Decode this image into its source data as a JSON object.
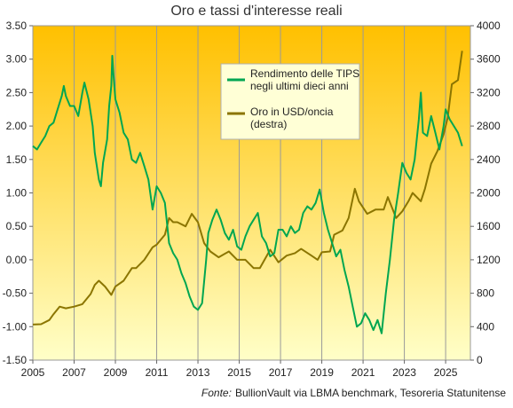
{
  "chart_data": {
    "type": "line",
    "title": "Oro e tassi d'interesse reali",
    "source_prefix": "Fonte:",
    "source_text": "BullionVault via LBMA benchmark, Tesoreria Statunitense",
    "x_ticks": [
      "2005",
      "2007",
      "2009",
      "2011",
      "2013",
      "2015",
      "2017",
      "2019",
      "2021",
      "2023",
      "2025"
    ],
    "x_range": [
      2005,
      2026.2
    ],
    "y_left": {
      "range": [
        -1.5,
        3.5
      ],
      "ticks": [
        "-1.50",
        "-1.00",
        "-0.50",
        "0.00",
        "0.50",
        "1.00",
        "1.50",
        "2.00",
        "2.50",
        "3.00",
        "3.50"
      ]
    },
    "y_right": {
      "range": [
        0,
        4000
      ],
      "ticks": [
        "0",
        "400",
        "800",
        "1200",
        "1600",
        "2000",
        "2400",
        "2800",
        "3200",
        "3600",
        "4000"
      ]
    },
    "background": {
      "top": "#FFC000",
      "bottom": "#FFFFC8"
    },
    "grid": "vertical",
    "legend_position": "top-center",
    "series": [
      {
        "name": "Rendimento delle TIPS negli ultimi dieci anni",
        "axis": "left",
        "color": "#00A651",
        "points": [
          [
            2005.0,
            1.7
          ],
          [
            2005.2,
            1.65
          ],
          [
            2005.4,
            1.75
          ],
          [
            2005.6,
            1.85
          ],
          [
            2005.8,
            2.0
          ],
          [
            2006.0,
            2.05
          ],
          [
            2006.2,
            2.25
          ],
          [
            2006.4,
            2.45
          ],
          [
            2006.5,
            2.6
          ],
          [
            2006.6,
            2.45
          ],
          [
            2006.8,
            2.3
          ],
          [
            2007.0,
            2.3
          ],
          [
            2007.2,
            2.15
          ],
          [
            2007.4,
            2.5
          ],
          [
            2007.5,
            2.65
          ],
          [
            2007.7,
            2.4
          ],
          [
            2007.9,
            2.0
          ],
          [
            2008.0,
            1.6
          ],
          [
            2008.1,
            1.4
          ],
          [
            2008.2,
            1.2
          ],
          [
            2008.3,
            1.1
          ],
          [
            2008.4,
            1.45
          ],
          [
            2008.6,
            1.8
          ],
          [
            2008.7,
            2.3
          ],
          [
            2008.8,
            2.6
          ],
          [
            2008.85,
            3.05
          ],
          [
            2008.9,
            2.8
          ],
          [
            2009.0,
            2.4
          ],
          [
            2009.2,
            2.2
          ],
          [
            2009.4,
            1.9
          ],
          [
            2009.6,
            1.8
          ],
          [
            2009.8,
            1.5
          ],
          [
            2010.0,
            1.45
          ],
          [
            2010.2,
            1.6
          ],
          [
            2010.4,
            1.4
          ],
          [
            2010.6,
            1.2
          ],
          [
            2010.8,
            0.75
          ],
          [
            2011.0,
            1.1
          ],
          [
            2011.2,
            1.0
          ],
          [
            2011.4,
            0.85
          ],
          [
            2011.6,
            0.25
          ],
          [
            2011.8,
            0.1
          ],
          [
            2012.0,
            0.0
          ],
          [
            2012.2,
            -0.2
          ],
          [
            2012.4,
            -0.35
          ],
          [
            2012.6,
            -0.55
          ],
          [
            2012.8,
            -0.7
          ],
          [
            2013.0,
            -0.75
          ],
          [
            2013.2,
            -0.65
          ],
          [
            2013.4,
            0.0
          ],
          [
            2013.5,
            0.4
          ],
          [
            2013.7,
            0.6
          ],
          [
            2013.9,
            0.75
          ],
          [
            2014.1,
            0.6
          ],
          [
            2014.3,
            0.4
          ],
          [
            2014.5,
            0.3
          ],
          [
            2014.7,
            0.45
          ],
          [
            2014.9,
            0.2
          ],
          [
            2015.1,
            0.15
          ],
          [
            2015.3,
            0.35
          ],
          [
            2015.5,
            0.5
          ],
          [
            2015.7,
            0.6
          ],
          [
            2015.9,
            0.7
          ],
          [
            2016.1,
            0.35
          ],
          [
            2016.3,
            0.25
          ],
          [
            2016.5,
            0.05
          ],
          [
            2016.7,
            0.1
          ],
          [
            2016.9,
            0.45
          ],
          [
            2017.1,
            0.45
          ],
          [
            2017.3,
            0.35
          ],
          [
            2017.5,
            0.5
          ],
          [
            2017.7,
            0.4
          ],
          [
            2017.9,
            0.45
          ],
          [
            2018.1,
            0.7
          ],
          [
            2018.3,
            0.8
          ],
          [
            2018.5,
            0.75
          ],
          [
            2018.7,
            0.85
          ],
          [
            2018.9,
            1.05
          ],
          [
            2019.1,
            0.7
          ],
          [
            2019.3,
            0.45
          ],
          [
            2019.5,
            0.25
          ],
          [
            2019.7,
            0.05
          ],
          [
            2019.9,
            0.15
          ],
          [
            2020.1,
            -0.15
          ],
          [
            2020.3,
            -0.4
          ],
          [
            2020.5,
            -0.7
          ],
          [
            2020.7,
            -1.0
          ],
          [
            2020.9,
            -0.95
          ],
          [
            2021.1,
            -0.8
          ],
          [
            2021.3,
            -0.9
          ],
          [
            2021.5,
            -1.05
          ],
          [
            2021.7,
            -0.9
          ],
          [
            2021.9,
            -1.1
          ],
          [
            2022.1,
            -0.5
          ],
          [
            2022.3,
            0.0
          ],
          [
            2022.5,
            0.6
          ],
          [
            2022.7,
            1.0
          ],
          [
            2022.9,
            1.45
          ],
          [
            2023.1,
            1.3
          ],
          [
            2023.3,
            1.2
          ],
          [
            2023.5,
            1.5
          ],
          [
            2023.7,
            2.1
          ],
          [
            2023.8,
            2.5
          ],
          [
            2023.9,
            1.9
          ],
          [
            2024.1,
            1.85
          ],
          [
            2024.3,
            2.15
          ],
          [
            2024.5,
            1.9
          ],
          [
            2024.7,
            1.65
          ],
          [
            2024.9,
            2.0
          ],
          [
            2025.0,
            2.25
          ],
          [
            2025.2,
            2.1
          ],
          [
            2025.4,
            2.0
          ],
          [
            2025.6,
            1.9
          ],
          [
            2025.8,
            1.7
          ]
        ]
      },
      {
        "name": "Oro in USD/oncia (destra)",
        "axis": "right",
        "color": "#8B7500",
        "points": [
          [
            2005.0,
            425
          ],
          [
            2005.4,
            430
          ],
          [
            2005.8,
            480
          ],
          [
            2006.0,
            550
          ],
          [
            2006.3,
            640
          ],
          [
            2006.6,
            620
          ],
          [
            2007.0,
            640
          ],
          [
            2007.4,
            670
          ],
          [
            2007.8,
            790
          ],
          [
            2008.0,
            900
          ],
          [
            2008.2,
            950
          ],
          [
            2008.5,
            880
          ],
          [
            2008.8,
            780
          ],
          [
            2009.0,
            880
          ],
          [
            2009.4,
            950
          ],
          [
            2009.8,
            1100
          ],
          [
            2010.0,
            1100
          ],
          [
            2010.4,
            1200
          ],
          [
            2010.8,
            1350
          ],
          [
            2011.0,
            1380
          ],
          [
            2011.4,
            1500
          ],
          [
            2011.6,
            1700
          ],
          [
            2011.8,
            1650
          ],
          [
            2012.0,
            1650
          ],
          [
            2012.4,
            1600
          ],
          [
            2012.7,
            1750
          ],
          [
            2013.0,
            1650
          ],
          [
            2013.3,
            1400
          ],
          [
            2013.6,
            1300
          ],
          [
            2014.0,
            1230
          ],
          [
            2014.5,
            1300
          ],
          [
            2014.9,
            1200
          ],
          [
            2015.3,
            1200
          ],
          [
            2015.7,
            1100
          ],
          [
            2016.0,
            1100
          ],
          [
            2016.5,
            1320
          ],
          [
            2016.9,
            1170
          ],
          [
            2017.3,
            1250
          ],
          [
            2017.7,
            1280
          ],
          [
            2018.0,
            1330
          ],
          [
            2018.5,
            1250
          ],
          [
            2018.8,
            1200
          ],
          [
            2019.0,
            1290
          ],
          [
            2019.4,
            1300
          ],
          [
            2019.6,
            1500
          ],
          [
            2020.0,
            1550
          ],
          [
            2020.3,
            1700
          ],
          [
            2020.6,
            2050
          ],
          [
            2020.8,
            1900
          ],
          [
            2021.2,
            1750
          ],
          [
            2021.6,
            1800
          ],
          [
            2022.0,
            1800
          ],
          [
            2022.2,
            1950
          ],
          [
            2022.6,
            1700
          ],
          [
            2022.9,
            1780
          ],
          [
            2023.2,
            1900
          ],
          [
            2023.4,
            2000
          ],
          [
            2023.8,
            1900
          ],
          [
            2024.0,
            2050
          ],
          [
            2024.3,
            2350
          ],
          [
            2024.6,
            2500
          ],
          [
            2024.9,
            2700
          ],
          [
            2025.1,
            2900
          ],
          [
            2025.3,
            3300
          ],
          [
            2025.6,
            3350
          ],
          [
            2025.8,
            3700
          ]
        ]
      }
    ]
  }
}
